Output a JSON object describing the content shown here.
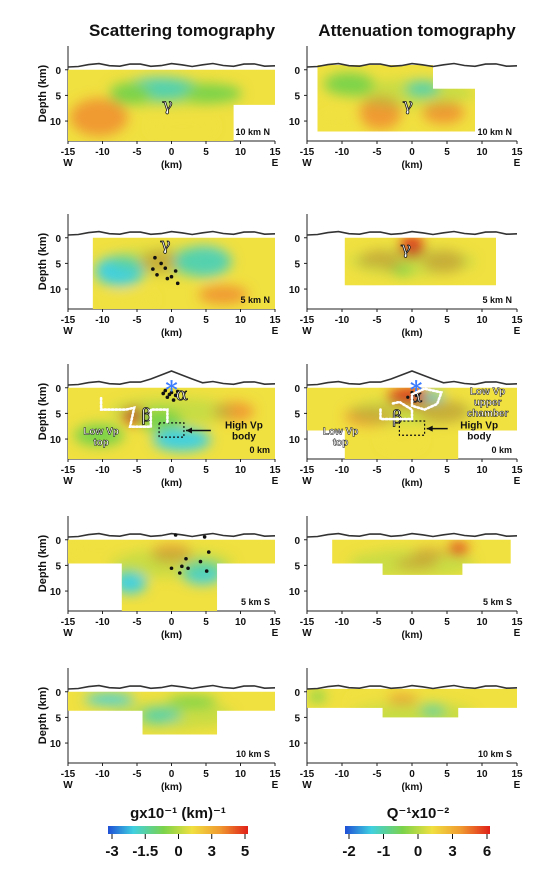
{
  "titles": {
    "scattering": "Scattering tomography",
    "attenuation": "Attenuation tomography"
  },
  "axis": {
    "ylabel": "Depth (km)",
    "xlabel": "(km)",
    "west": "W",
    "east": "E",
    "x_ticks": [
      "-15",
      "-10",
      "-5",
      "0",
      "5",
      "10",
      "15"
    ],
    "y_ticks": [
      "0",
      "5",
      "10"
    ]
  },
  "profiles": [
    "10 km N",
    "5 km N",
    "0 km",
    "5 km S",
    "10 km S"
  ],
  "labels": {
    "gamma": "γ",
    "alpha": "α",
    "beta": "β",
    "low_vp_top": [
      "Low Vp",
      "top"
    ],
    "high_vp_body": [
      "High Vp",
      "body"
    ],
    "low_vp_upper_chamber": [
      "Low Vp",
      "upper",
      "chamber"
    ],
    "star": "*"
  },
  "colorbars": {
    "scattering": {
      "title": "gx10⁻¹ (km)⁻¹",
      "ticks": [
        "-3",
        "-1.5",
        "0",
        "3",
        "5"
      ]
    },
    "attenuation": {
      "title": "Q⁻¹x10⁻²",
      "ticks": [
        "-2",
        "-1",
        "0",
        "3",
        "6"
      ]
    }
  },
  "colors": {
    "low": "#1f4fd6",
    "cyan": "#3fd0e0",
    "green": "#7cd34a",
    "yellow": "#f0e040",
    "orange": "#f09a30",
    "red": "#e02018"
  }
}
